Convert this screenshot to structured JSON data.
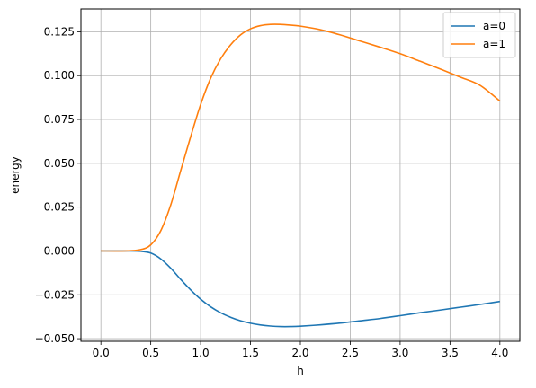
{
  "chart_data": {
    "type": "line",
    "xlabel": "h",
    "ylabel": "energy",
    "xlim": [
      -0.2,
      4.2
    ],
    "ylim": [
      -0.0515,
      0.138
    ],
    "xticks": [
      0.0,
      0.5,
      1.0,
      1.5,
      2.0,
      2.5,
      3.0,
      3.5,
      4.0
    ],
    "xtick_labels": [
      "0.0",
      "0.5",
      "1.0",
      "1.5",
      "2.0",
      "2.5",
      "3.0",
      "3.5",
      "4.0"
    ],
    "yticks": [
      -0.05,
      -0.025,
      0.0,
      0.025,
      0.05,
      0.075,
      0.1,
      0.125
    ],
    "ytick_labels": [
      "−0.050",
      "−0.025",
      "0.000",
      "0.025",
      "0.050",
      "0.075",
      "0.100",
      "0.125"
    ],
    "grid": true,
    "legend": "top-right",
    "x": [
      0.0,
      0.25,
      0.4,
      0.5,
      0.6,
      0.7,
      0.8,
      0.9,
      1.0,
      1.1,
      1.2,
      1.3,
      1.4,
      1.5,
      1.6,
      1.7,
      1.8,
      1.9,
      2.0,
      2.2,
      2.4,
      2.6,
      2.8,
      3.0,
      3.2,
      3.4,
      3.6,
      3.8,
      4.0
    ],
    "series": [
      {
        "name": "a=0",
        "color": "#1f77b4",
        "values": [
          0.0,
          0.0,
          -0.0002,
          -0.0012,
          -0.0045,
          -0.0098,
          -0.0162,
          -0.0222,
          -0.0275,
          -0.0318,
          -0.0352,
          -0.0378,
          -0.0398,
          -0.0412,
          -0.0422,
          -0.0428,
          -0.0431,
          -0.0431,
          -0.0429,
          -0.0421,
          -0.0411,
          -0.0398,
          -0.0385,
          -0.0369,
          -0.0352,
          -0.0337,
          -0.0321,
          -0.0305,
          -0.0288
        ]
      },
      {
        "name": "a=1",
        "color": "#ff7f0e",
        "values": [
          0.0,
          0.0,
          0.0008,
          0.0035,
          0.0115,
          0.0262,
          0.0458,
          0.0652,
          0.0835,
          0.0985,
          0.1095,
          0.1175,
          0.1232,
          0.1267,
          0.1285,
          0.1292,
          0.1292,
          0.1288,
          0.1282,
          0.1262,
          0.1232,
          0.1197,
          0.1162,
          0.1125,
          0.1082,
          0.1038,
          0.0992,
          0.0945,
          0.0855
        ]
      }
    ]
  }
}
